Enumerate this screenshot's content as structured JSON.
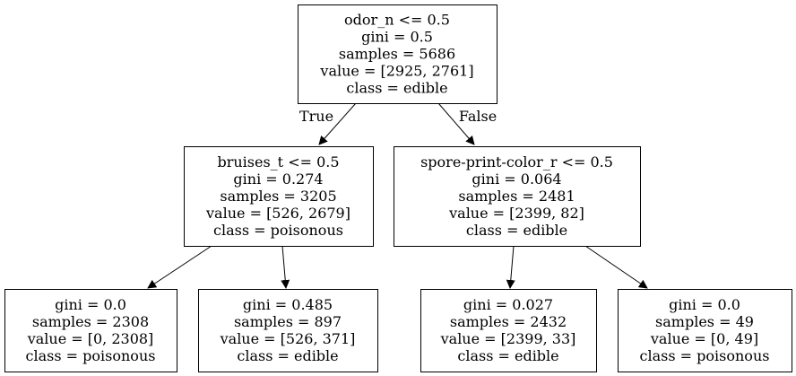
{
  "tree": {
    "nodes": [
      {
        "id": "n0",
        "lines": [
          "odor_n <= 0.5",
          "gini = 0.5",
          "samples = 5686",
          "value = [2925, 2761]",
          "class = edible"
        ]
      },
      {
        "id": "n1",
        "lines": [
          "bruises_t <= 0.5",
          "gini = 0.274",
          "samples = 3205",
          "value = [526, 2679]",
          "class = poisonous"
        ]
      },
      {
        "id": "n2",
        "lines": [
          "spore-print-color_r <= 0.5",
          "gini = 0.064",
          "samples = 2481",
          "value = [2399, 82]",
          "class = edible"
        ]
      },
      {
        "id": "n3",
        "lines": [
          "gini = 0.0",
          "samples = 2308",
          "value = [0, 2308]",
          "class = poisonous"
        ]
      },
      {
        "id": "n4",
        "lines": [
          "gini = 0.485",
          "samples = 897",
          "value = [526, 371]",
          "class = edible"
        ]
      },
      {
        "id": "n5",
        "lines": [
          "gini = 0.027",
          "samples = 2432",
          "value = [2399, 33]",
          "class = edible"
        ]
      },
      {
        "id": "n6",
        "lines": [
          "gini = 0.0",
          "samples = 49",
          "value = [0, 49]",
          "class = poisonous"
        ]
      }
    ],
    "edges": [
      {
        "from": "n0",
        "to": "n1",
        "label": "True"
      },
      {
        "from": "n0",
        "to": "n2",
        "label": "False"
      },
      {
        "from": "n1",
        "to": "n3",
        "label": ""
      },
      {
        "from": "n1",
        "to": "n4",
        "label": ""
      },
      {
        "from": "n2",
        "to": "n5",
        "label": ""
      },
      {
        "from": "n2",
        "to": "n6",
        "label": ""
      }
    ]
  }
}
